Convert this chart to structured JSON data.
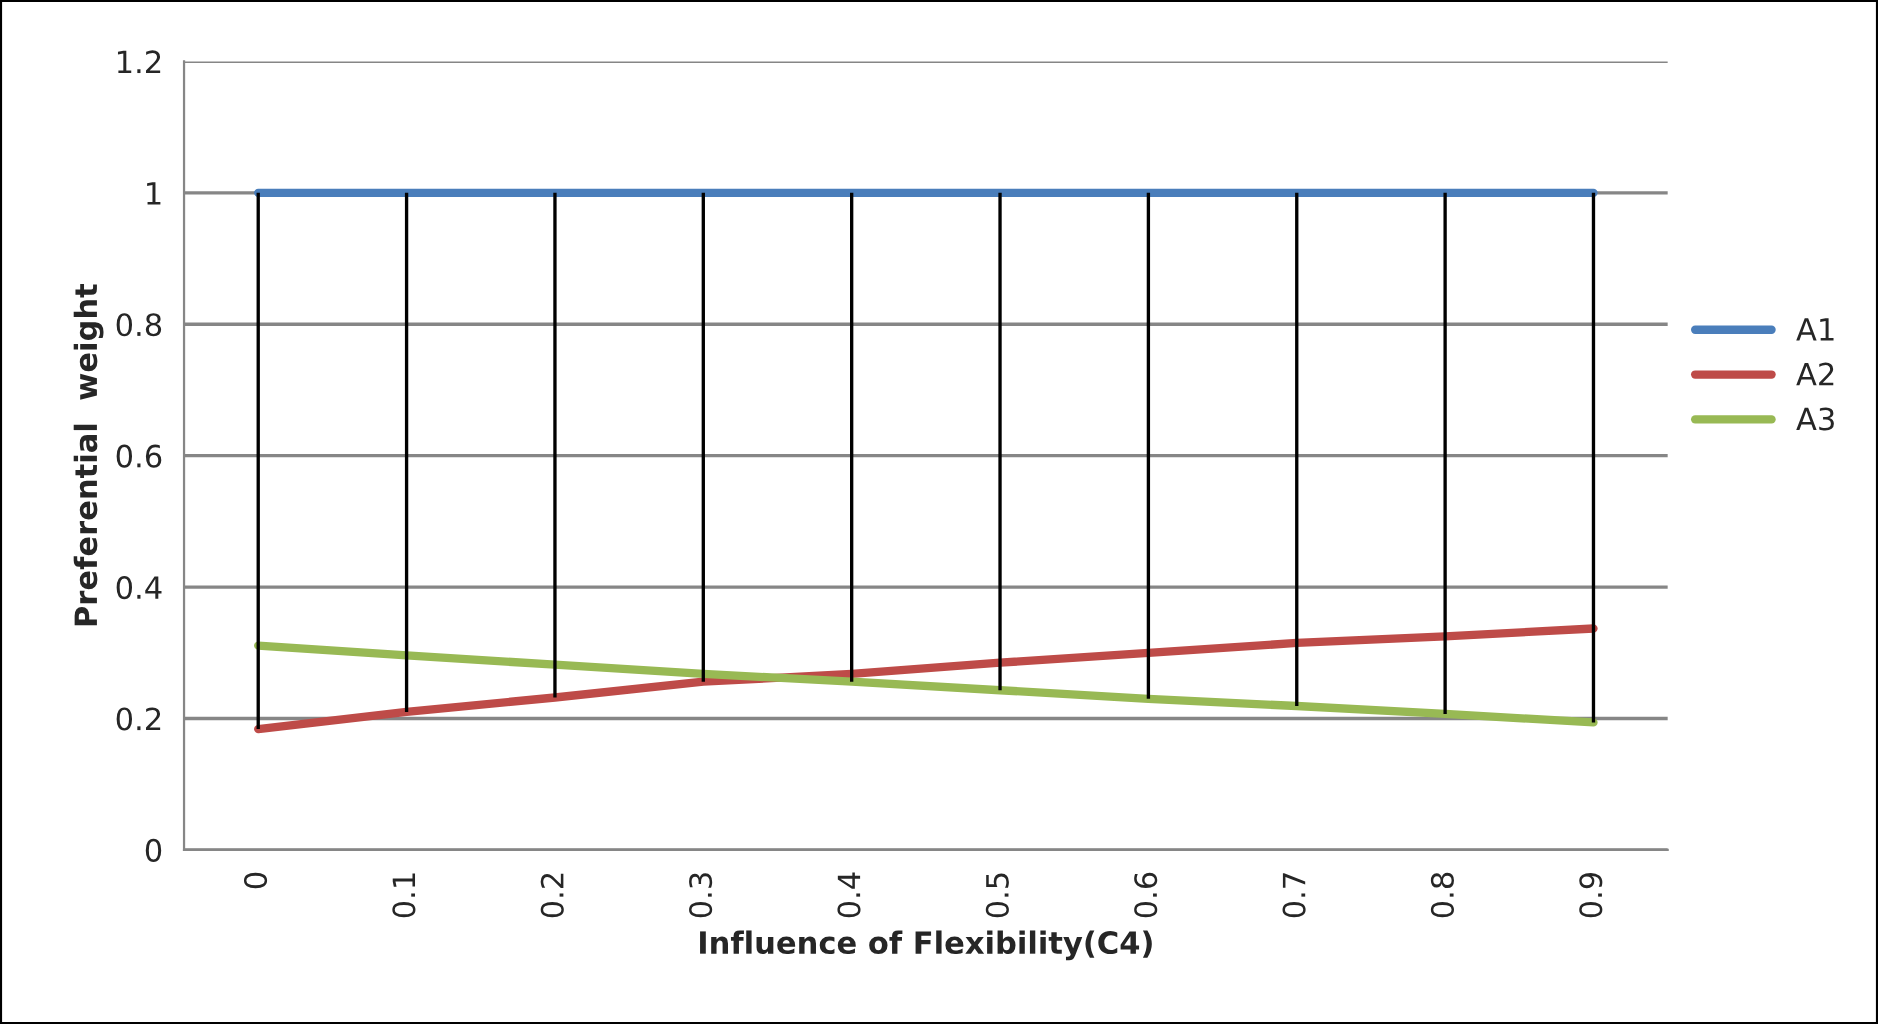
{
  "chart_data": {
    "type": "line",
    "xlabel": "Influence of Flexibility(C4)",
    "ylabel": "Preferential  weight",
    "categories": [
      "0",
      "0.1",
      "0.2",
      "0.3",
      "0.4",
      "0.5",
      "0.6",
      "0.7",
      "0.8",
      "0.9"
    ],
    "series": [
      {
        "name": "A1",
        "color": "#4a7ebb",
        "values": [
          1,
          1,
          1,
          1,
          1,
          1,
          1,
          1,
          1,
          1
        ],
        "errors": [
          [
            0.184,
            1
          ],
          [
            0.21,
            1
          ],
          [
            0.232,
            1
          ],
          [
            0.256,
            1
          ],
          [
            0.256,
            1
          ],
          [
            0.243,
            1
          ],
          [
            0.23,
            1
          ],
          [
            0.219,
            1
          ],
          [
            0.207,
            1
          ],
          [
            0.194,
            1
          ]
        ]
      },
      {
        "name": "A2",
        "color": "#be4b48",
        "values": [
          0.184,
          0.21,
          0.232,
          0.256,
          0.268,
          0.285,
          0.3,
          0.315,
          0.325,
          0.337
        ]
      },
      {
        "name": "A3",
        "color": "#98b954",
        "values": [
          0.311,
          0.296,
          0.282,
          0.268,
          0.256,
          0.243,
          0.23,
          0.219,
          0.207,
          0.194
        ]
      }
    ],
    "ylim": [
      0,
      1.2
    ],
    "yticks": [
      0,
      0.2,
      0.4,
      0.6,
      0.8,
      1,
      1.2
    ],
    "grid": "y",
    "legend": "right",
    "marker": "none",
    "line_style": "solid"
  }
}
